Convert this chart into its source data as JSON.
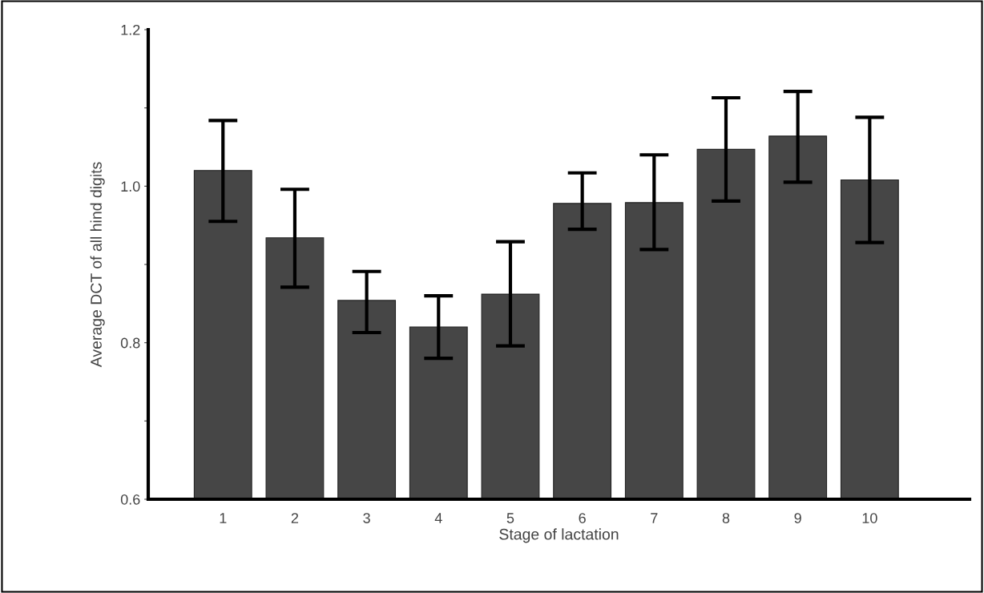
{
  "chart_data": {
    "type": "bar",
    "xlabel": "Stage of lactation",
    "ylabel": "Average DCT of all hind digits",
    "categories": [
      "1",
      "2",
      "3",
      "4",
      "5",
      "6",
      "7",
      "8",
      "9",
      "10"
    ],
    "values": [
      1.02,
      0.934,
      0.854,
      0.82,
      0.862,
      0.978,
      0.979,
      1.047,
      1.064,
      1.008
    ],
    "errors": [
      [
        0.955,
        1.084
      ],
      [
        0.871,
        0.996
      ],
      [
        0.813,
        0.891
      ],
      [
        0.78,
        0.86
      ],
      [
        0.796,
        0.929
      ],
      [
        0.945,
        1.017
      ],
      [
        0.919,
        1.04
      ],
      [
        0.981,
        1.113
      ],
      [
        1.005,
        1.121
      ],
      [
        0.928,
        1.088
      ]
    ],
    "color": "#464646",
    "ylim": [
      0.6,
      1.2
    ],
    "yticks": [
      {
        "value": 0.6,
        "label": "0.6"
      },
      {
        "value": 0.7,
        "label": null
      },
      {
        "value": 0.8,
        "label": "0.8"
      },
      {
        "value": 0.9,
        "label": null
      },
      {
        "value": 1.0,
        "label": "1.0"
      },
      {
        "value": 1.1,
        "label": null
      },
      {
        "value": 1.2,
        "label": "1.2"
      }
    ],
    "grid": false
  }
}
